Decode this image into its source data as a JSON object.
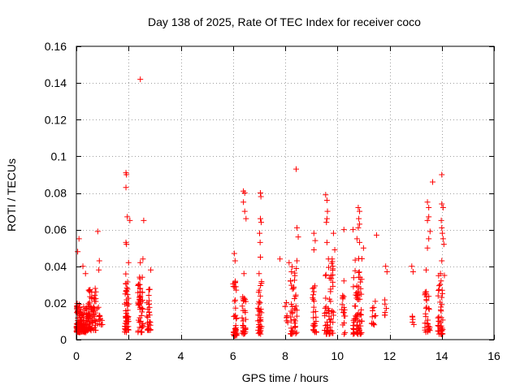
{
  "chart_data": {
    "type": "scatter",
    "title": "Day 138 of 2025, Rate Of TEC Index for receiver coco",
    "xlabel": "GPS time / hours",
    "ylabel": "ROTI / TECUs",
    "xlim": [
      0,
      16
    ],
    "ylim": [
      0,
      0.16
    ],
    "xticks": [
      0,
      2,
      4,
      6,
      8,
      10,
      12,
      14,
      16
    ],
    "xtick_labels": [
      "0",
      "2",
      "4",
      "6",
      "8",
      "10",
      "12",
      "14",
      "16"
    ],
    "yticks": [
      0,
      0.02,
      0.04,
      0.06,
      0.08,
      0.1,
      0.12,
      0.14,
      0.16
    ],
    "ytick_labels": [
      "0",
      "0.02",
      "0.04",
      "0.06",
      "0.08",
      "0.1",
      "0.12",
      "0.14",
      "0.16"
    ],
    "grid": true,
    "marker": "+",
    "marker_color": "#ff0000",
    "clusters": [
      {
        "x": [
          0.0,
          0.15
        ],
        "y": [
          0.004,
          0.02
        ],
        "n": 70
      },
      {
        "x": [
          0.15,
          0.45
        ],
        "y": [
          0.004,
          0.018
        ],
        "n": 60
      },
      {
        "x": [
          0.45,
          0.75
        ],
        "y": [
          0.005,
          0.028
        ],
        "n": 70
      },
      {
        "x": [
          0.8,
          1.0
        ],
        "y": [
          0.008,
          0.02
        ],
        "n": 12
      },
      {
        "x": [
          1.85,
          2.0
        ],
        "y": [
          0.004,
          0.036
        ],
        "n": 50
      },
      {
        "x": [
          2.35,
          2.55
        ],
        "y": [
          0.004,
          0.035
        ],
        "n": 50
      },
      {
        "x": [
          2.7,
          2.85
        ],
        "y": [
          0.005,
          0.028
        ],
        "n": 30
      },
      {
        "x": [
          6.0,
          6.15
        ],
        "y": [
          0.002,
          0.04
        ],
        "n": 40
      },
      {
        "x": [
          6.35,
          6.5
        ],
        "y": [
          0.003,
          0.028
        ],
        "n": 30
      },
      {
        "x": [
          6.95,
          7.1
        ],
        "y": [
          0.003,
          0.032
        ],
        "n": 35
      },
      {
        "x": [
          8.0,
          8.1
        ],
        "y": [
          0.008,
          0.025
        ],
        "n": 8
      },
      {
        "x": [
          8.2,
          8.45
        ],
        "y": [
          0.003,
          0.04
        ],
        "n": 45
      },
      {
        "x": [
          9.05,
          9.2
        ],
        "y": [
          0.004,
          0.03
        ],
        "n": 25
      },
      {
        "x": [
          9.5,
          9.85
        ],
        "y": [
          0.003,
          0.045
        ],
        "n": 60
      },
      {
        "x": [
          10.15,
          10.3
        ],
        "y": [
          0.003,
          0.025
        ],
        "n": 15
      },
      {
        "x": [
          10.6,
          10.95
        ],
        "y": [
          0.003,
          0.045
        ],
        "n": 70
      },
      {
        "x": [
          11.3,
          11.5
        ],
        "y": [
          0.008,
          0.024
        ],
        "n": 12
      },
      {
        "x": [
          11.8,
          11.9
        ],
        "y": [
          0.01,
          0.022
        ],
        "n": 6
      },
      {
        "x": [
          12.85,
          12.95
        ],
        "y": [
          0.008,
          0.018
        ],
        "n": 5
      },
      {
        "x": [
          13.35,
          13.55
        ],
        "y": [
          0.004,
          0.028
        ],
        "n": 30
      },
      {
        "x": [
          13.85,
          14.05
        ],
        "y": [
          0.003,
          0.035
        ],
        "n": 40
      }
    ],
    "points": [
      {
        "x": 0.05,
        "y": 0.048
      },
      {
        "x": 0.1,
        "y": 0.055
      },
      {
        "x": 0.25,
        "y": 0.04
      },
      {
        "x": 0.35,
        "y": 0.036
      },
      {
        "x": 0.82,
        "y": 0.059
      },
      {
        "x": 0.88,
        "y": 0.043
      },
      {
        "x": 0.86,
        "y": 0.038
      },
      {
        "x": 1.9,
        "y": 0.091
      },
      {
        "x": 1.92,
        "y": 0.09
      },
      {
        "x": 1.9,
        "y": 0.083
      },
      {
        "x": 1.95,
        "y": 0.067
      },
      {
        "x": 2.05,
        "y": 0.065
      },
      {
        "x": 1.9,
        "y": 0.053
      },
      {
        "x": 1.92,
        "y": 0.052
      },
      {
        "x": 2.0,
        "y": 0.042
      },
      {
        "x": 2.45,
        "y": 0.142
      },
      {
        "x": 2.58,
        "y": 0.065
      },
      {
        "x": 2.45,
        "y": 0.042
      },
      {
        "x": 2.55,
        "y": 0.044
      },
      {
        "x": 2.85,
        "y": 0.038
      },
      {
        "x": 6.05,
        "y": 0.047
      },
      {
        "x": 6.08,
        "y": 0.043
      },
      {
        "x": 6.4,
        "y": 0.081
      },
      {
        "x": 6.45,
        "y": 0.08
      },
      {
        "x": 6.4,
        "y": 0.075
      },
      {
        "x": 6.45,
        "y": 0.07
      },
      {
        "x": 6.5,
        "y": 0.066
      },
      {
        "x": 6.42,
        "y": 0.036
      },
      {
        "x": 7.05,
        "y": 0.08
      },
      {
        "x": 7.07,
        "y": 0.078
      },
      {
        "x": 7.05,
        "y": 0.066
      },
      {
        "x": 7.08,
        "y": 0.064
      },
      {
        "x": 7.02,
        "y": 0.058
      },
      {
        "x": 7.04,
        "y": 0.053
      },
      {
        "x": 7.05,
        "y": 0.045
      },
      {
        "x": 7.0,
        "y": 0.036
      },
      {
        "x": 7.8,
        "y": 0.044
      },
      {
        "x": 8.42,
        "y": 0.093
      },
      {
        "x": 8.45,
        "y": 0.061
      },
      {
        "x": 8.5,
        "y": 0.056
      },
      {
        "x": 8.45,
        "y": 0.043
      },
      {
        "x": 8.15,
        "y": 0.042
      },
      {
        "x": 9.1,
        "y": 0.058
      },
      {
        "x": 9.15,
        "y": 0.054
      },
      {
        "x": 9.1,
        "y": 0.049
      },
      {
        "x": 9.55,
        "y": 0.079
      },
      {
        "x": 9.6,
        "y": 0.076
      },
      {
        "x": 9.62,
        "y": 0.07
      },
      {
        "x": 9.6,
        "y": 0.066
      },
      {
        "x": 9.58,
        "y": 0.064
      },
      {
        "x": 9.6,
        "y": 0.053
      },
      {
        "x": 9.85,
        "y": 0.058
      },
      {
        "x": 9.9,
        "y": 0.049
      },
      {
        "x": 9.8,
        "y": 0.044
      },
      {
        "x": 10.25,
        "y": 0.06
      },
      {
        "x": 10.25,
        "y": 0.032
      },
      {
        "x": 10.2,
        "y": 0.024
      },
      {
        "x": 10.8,
        "y": 0.072
      },
      {
        "x": 10.85,
        "y": 0.07
      },
      {
        "x": 10.82,
        "y": 0.066
      },
      {
        "x": 10.85,
        "y": 0.063
      },
      {
        "x": 10.8,
        "y": 0.061
      },
      {
        "x": 10.75,
        "y": 0.055
      },
      {
        "x": 10.85,
        "y": 0.053
      },
      {
        "x": 10.6,
        "y": 0.06
      },
      {
        "x": 11.0,
        "y": 0.05
      },
      {
        "x": 11.5,
        "y": 0.057
      },
      {
        "x": 11.85,
        "y": 0.04
      },
      {
        "x": 11.9,
        "y": 0.037
      },
      {
        "x": 12.85,
        "y": 0.04
      },
      {
        "x": 12.9,
        "y": 0.037
      },
      {
        "x": 13.45,
        "y": 0.075
      },
      {
        "x": 13.5,
        "y": 0.072
      },
      {
        "x": 13.5,
        "y": 0.067
      },
      {
        "x": 13.45,
        "y": 0.065
      },
      {
        "x": 13.55,
        "y": 0.059
      },
      {
        "x": 13.5,
        "y": 0.055
      },
      {
        "x": 13.45,
        "y": 0.05
      },
      {
        "x": 13.4,
        "y": 0.038
      },
      {
        "x": 13.65,
        "y": 0.086
      },
      {
        "x": 14.0,
        "y": 0.09
      },
      {
        "x": 14.0,
        "y": 0.074
      },
      {
        "x": 14.05,
        "y": 0.072
      },
      {
        "x": 13.98,
        "y": 0.065
      },
      {
        "x": 14.0,
        "y": 0.061
      },
      {
        "x": 14.02,
        "y": 0.058
      },
      {
        "x": 14.05,
        "y": 0.055
      },
      {
        "x": 14.08,
        "y": 0.052
      },
      {
        "x": 14.0,
        "y": 0.043
      },
      {
        "x": 13.95,
        "y": 0.036
      },
      {
        "x": 14.1,
        "y": 0.035
      }
    ]
  }
}
